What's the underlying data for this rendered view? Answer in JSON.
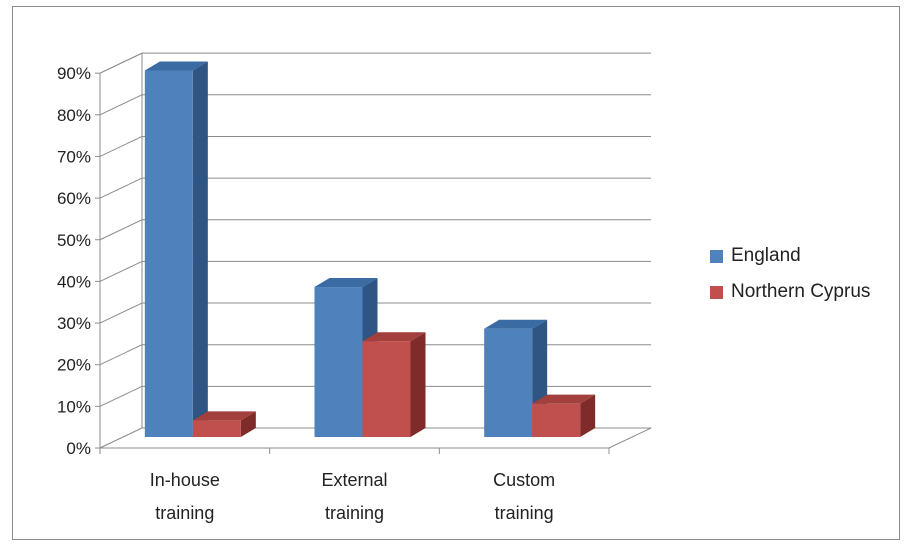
{
  "colors": {
    "england_front": "#4F81BD",
    "england_side": "#2E5583",
    "england_top": "#3A6BA3",
    "cyprus_front": "#C0504D",
    "cyprus_side": "#7F2B29",
    "cyprus_top": "#A33F3C",
    "grid": "#8C8C8C",
    "floor": "#FFFFFF"
  },
  "chart_data": {
    "type": "bar",
    "categories": [
      "In-house training",
      "External training",
      "Custom training"
    ],
    "category_lines": [
      [
        "In-house",
        "training"
      ],
      [
        "External",
        "training"
      ],
      [
        "Custom",
        "training"
      ]
    ],
    "series": [
      {
        "name": "England",
        "values": [
          88,
          36,
          26
        ]
      },
      {
        "name": "Northern Cyprus",
        "values": [
          4,
          23,
          8
        ]
      }
    ],
    "y_ticks": [
      "0%",
      "10%",
      "20%",
      "30%",
      "40%",
      "50%",
      "60%",
      "70%",
      "80%",
      "90%"
    ],
    "ylim": [
      0,
      90
    ],
    "grid": true,
    "legend_position": "right",
    "style": "3d-clustered-column",
    "title": "",
    "xlabel": "",
    "ylabel": ""
  }
}
